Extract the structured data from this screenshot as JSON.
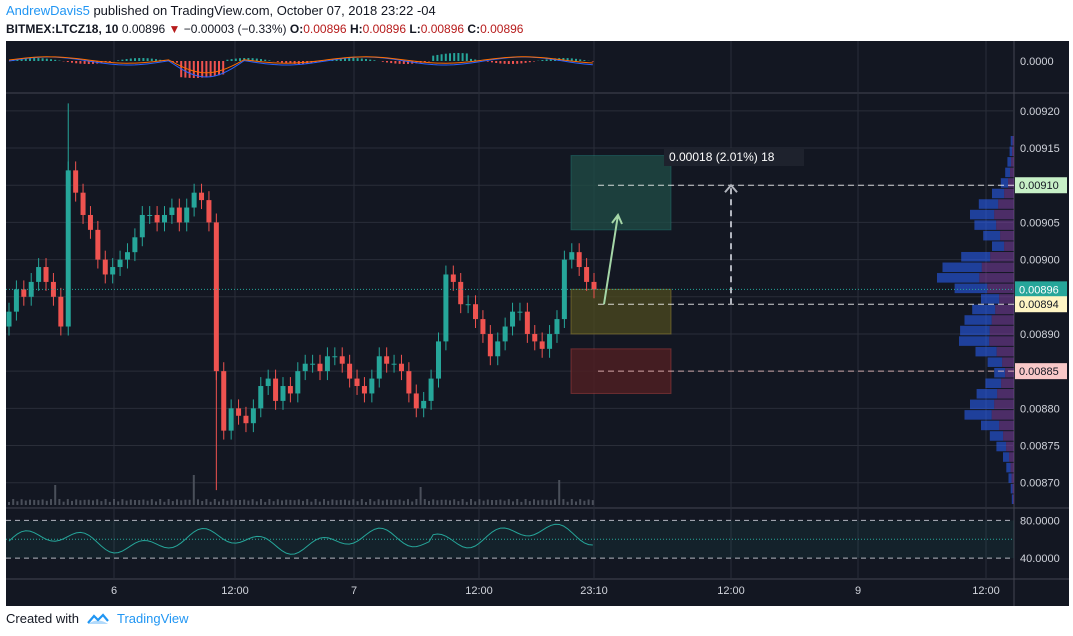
{
  "header": {
    "author": "AndrewDavis5",
    "published_text": " published on TradingView.com, October 07, 2018 23:22 -04"
  },
  "symbol_bar": {
    "symbol": "BITMEX:LTCZ18, 10",
    "price": "0.00896",
    "arrow": "▼",
    "change": "−0.00003 (−0.33%)",
    "open_label": "O:",
    "open": "0.00896",
    "high_label": "H:",
    "high": "0.00896",
    "low_label": "L:",
    "low": "0.00896",
    "close_label": "C:",
    "close": "0.00896"
  },
  "footer": {
    "created_with": "Created with",
    "brand": "TradingView"
  },
  "colors": {
    "background": "#131722",
    "up": "#26a69a",
    "down": "#ef5350",
    "grid": "#2a2e39",
    "target_box": "#1f4d46",
    "stop_box": "#4d1f23",
    "entry_box": "#4d4a1f",
    "label_current": "#26a69a",
    "label_target": "#c7f0c7",
    "label_entry": "#fff5c4",
    "label_stop": "#f8c8c8"
  },
  "chart_data": {
    "type": "candlestick",
    "symbol": "BITMEX:LTCZ18",
    "interval": "10",
    "ylim": [
      0.00867,
      0.00922
    ],
    "ticks_y": [
      "0.00920",
      "0.00915",
      "0.00910",
      "0.00905",
      "0.00900",
      "0.00896",
      "0.00894",
      "0.00890",
      "0.00885",
      "0.00880",
      "0.00875",
      "0.00870"
    ],
    "ticks_x": [
      "6",
      "12:00",
      "7",
      "12:00",
      "23:10",
      "12:00",
      "9",
      "12:00"
    ],
    "close_series": [
      0.00893,
      0.00896,
      0.00895,
      0.00897,
      0.00899,
      0.00897,
      0.00895,
      0.00891,
      0.00912,
      0.00909,
      0.00906,
      0.00904,
      0.009,
      0.00898,
      0.00899,
      0.009,
      0.00901,
      0.00903,
      0.00906,
      0.00906,
      0.00905,
      0.00906,
      0.00907,
      0.00905,
      0.00907,
      0.00909,
      0.00908,
      0.00905,
      0.00885,
      0.00877,
      0.0088,
      0.00879,
      0.00878,
      0.0088,
      0.00883,
      0.00884,
      0.00881,
      0.00883,
      0.00882,
      0.00885,
      0.00886,
      0.00886,
      0.00885,
      0.00887,
      0.00887,
      0.00886,
      0.00884,
      0.00883,
      0.00882,
      0.00884,
      0.00887,
      0.00886,
      0.00886,
      0.00885,
      0.00882,
      0.0088,
      0.00881,
      0.00884,
      0.00889,
      0.00898,
      0.00897,
      0.00894,
      0.00894,
      0.00892,
      0.0089,
      0.00887,
      0.00889,
      0.00891,
      0.00893,
      0.00893,
      0.0089,
      0.00889,
      0.00888,
      0.0089,
      0.00892,
      0.009,
      0.00901,
      0.00899,
      0.00897,
      0.00896
    ],
    "annotations": {
      "measure_label": "0.00018 (2.01%) 18",
      "current_price": "0.00896",
      "target_price": "0.00910",
      "entry_price": "0.00894",
      "stop_price": "0.00885"
    },
    "macd_pane": {
      "scale_label": "0.0000"
    },
    "oscillator_pane": {
      "levels": [
        "80.0000",
        "40.0000"
      ]
    }
  }
}
